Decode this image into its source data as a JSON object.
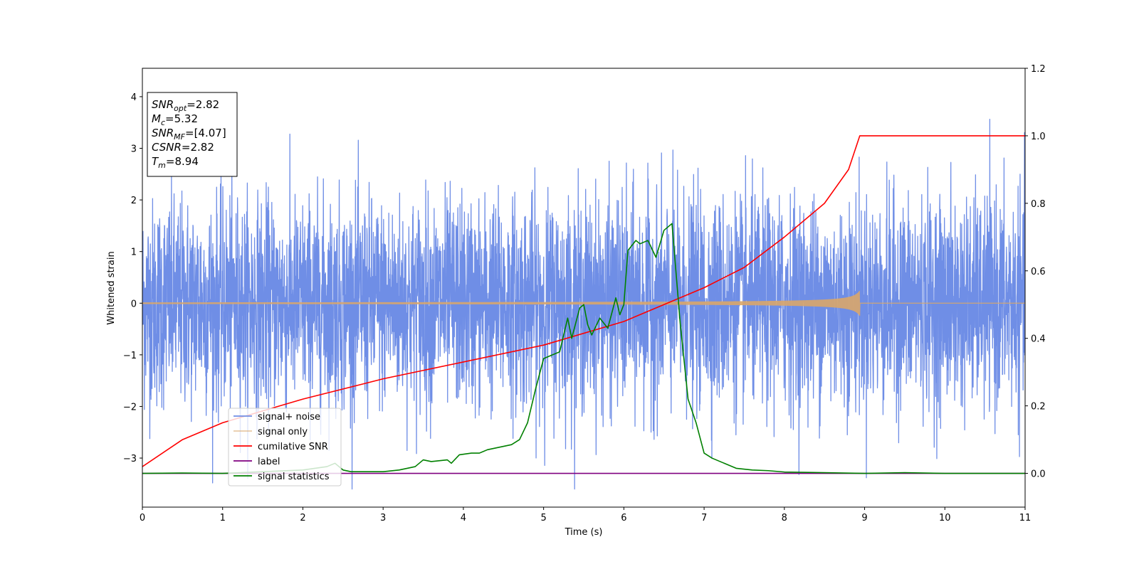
{
  "chart_data": {
    "type": "line",
    "xlabel": "Time (s)",
    "ylabel": "Whitened strain",
    "xlim": [
      0,
      11
    ],
    "ylim": [
      -3.95,
      4.55
    ],
    "y2lim": [
      -0.1,
      1.2
    ],
    "grid": false,
    "legend_position": "lower-left",
    "x_ticks": [
      "0",
      "1",
      "2",
      "3",
      "4",
      "5",
      "6",
      "7",
      "8",
      "9",
      "10",
      "11"
    ],
    "y_ticks": [
      "−3",
      "−2",
      "−1",
      "0",
      "1",
      "2",
      "3",
      "4"
    ],
    "y2_ticks": [
      "0.0",
      "0.2",
      "0.4",
      "0.6",
      "0.8",
      "1.0",
      "1.2"
    ],
    "annotation": [
      {
        "base": "SNR",
        "sub": "opt",
        "value": "=2.82"
      },
      {
        "base": "M",
        "sub": "c",
        "value": "=5.32"
      },
      {
        "base": "SNR",
        "sub": "MF",
        "value": "=[4.07]"
      },
      {
        "base": "CSNR",
        "sub": "",
        "value": "=2.82"
      },
      {
        "base": "T",
        "sub": "m",
        "value": "=8.94"
      }
    ],
    "series": [
      {
        "name": "signal+ noise",
        "axis": "left",
        "color": "#6f8ee6",
        "kind": "noise",
        "description_values": {
          "mean": 0,
          "std": 1.0,
          "min": -3.6,
          "max": 4.15
        }
      },
      {
        "name": "signal only",
        "axis": "left",
        "color": "#d9a66a",
        "kind": "chirp",
        "merger_time": 8.94,
        "peak_amplitude": 0.25
      },
      {
        "name": "cumilative SNR",
        "axis": "right",
        "color": "#ff0000",
        "x": [
          0,
          0.5,
          1,
          2,
          3,
          4,
          5,
          6,
          7,
          7.5,
          8,
          8.5,
          8.8,
          8.94,
          9.0,
          11
        ],
        "values": [
          0.02,
          0.1,
          0.15,
          0.22,
          0.28,
          0.33,
          0.38,
          0.45,
          0.55,
          0.61,
          0.7,
          0.8,
          0.9,
          1.0,
          1.0,
          1.0
        ]
      },
      {
        "name": "label",
        "axis": "right",
        "color": "#800080",
        "x": [
          0,
          11
        ],
        "values": [
          0,
          0
        ]
      },
      {
        "name": "signal statistics",
        "axis": "right",
        "color": "#008000",
        "x": [
          0,
          0.5,
          1.0,
          1.5,
          2.0,
          2.3,
          2.4,
          2.5,
          2.6,
          3.0,
          3.2,
          3.4,
          3.5,
          3.6,
          3.8,
          3.85,
          3.95,
          4.1,
          4.2,
          4.3,
          4.4,
          4.5,
          4.6,
          4.7,
          4.8,
          4.9,
          5.0,
          5.1,
          5.2,
          5.3,
          5.35,
          5.45,
          5.5,
          5.55,
          5.6,
          5.7,
          5.8,
          5.9,
          5.95,
          6.0,
          6.05,
          6.15,
          6.2,
          6.3,
          6.4,
          6.5,
          6.6,
          6.7,
          6.8,
          6.9,
          7.0,
          7.1,
          7.2,
          7.4,
          7.6,
          7.8,
          8.0,
          8.5,
          9.0,
          9.5,
          10.0,
          11.0
        ],
        "values": [
          0.0,
          0.001,
          0.0,
          0.005,
          0.01,
          0.02,
          0.03,
          0.01,
          0.005,
          0.005,
          0.01,
          0.02,
          0.04,
          0.035,
          0.04,
          0.03,
          0.055,
          0.06,
          0.06,
          0.07,
          0.075,
          0.08,
          0.085,
          0.1,
          0.15,
          0.25,
          0.34,
          0.35,
          0.36,
          0.46,
          0.4,
          0.49,
          0.5,
          0.44,
          0.41,
          0.46,
          0.43,
          0.52,
          0.47,
          0.5,
          0.66,
          0.69,
          0.68,
          0.69,
          0.64,
          0.72,
          0.74,
          0.45,
          0.22,
          0.15,
          0.06,
          0.045,
          0.035,
          0.015,
          0.01,
          0.008,
          0.004,
          0.002,
          0.0,
          0.002,
          0.0,
          0.0
        ]
      }
    ]
  }
}
